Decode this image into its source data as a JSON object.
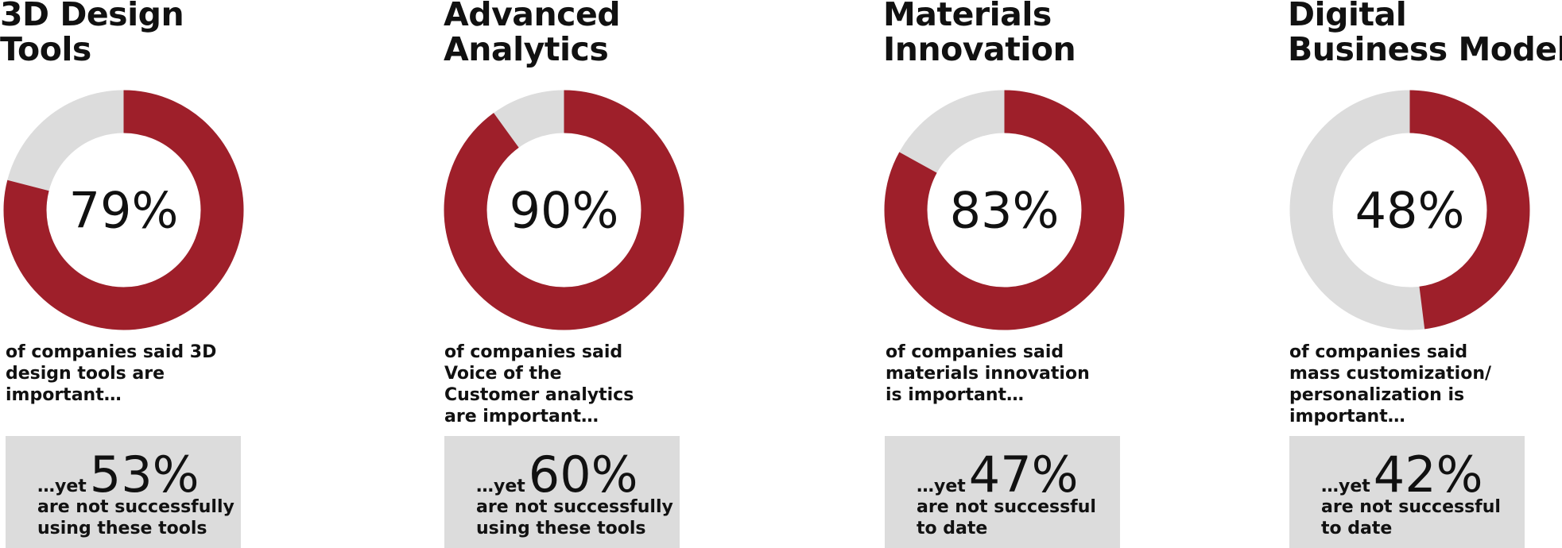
{
  "colors": {
    "accent": "#9e1f2a",
    "track": "#dcdcdc",
    "callout_bg": "#dcdcdc",
    "text": "#111111"
  },
  "chart_data": [
    {
      "type": "pie",
      "title": "3D Design Tools",
      "title_lines": [
        "3D Design",
        "Tools"
      ],
      "value": 79,
      "value_label": "79%",
      "description_lines": [
        "of companies said 3D",
        "design tools are",
        "important…"
      ],
      "callout": {
        "prefix": "…yet",
        "value": 53,
        "value_label": "53%",
        "text_lines": [
          "are not successfully",
          "using these tools"
        ]
      }
    },
    {
      "type": "pie",
      "title": "Advanced Analytics",
      "title_lines": [
        "Advanced",
        "Analytics"
      ],
      "value": 90,
      "value_label": "90%",
      "description_lines": [
        "of companies said",
        "Voice of the",
        "Customer analytics",
        "are important…"
      ],
      "callout": {
        "prefix": "…yet",
        "value": 60,
        "value_label": "60%",
        "text_lines": [
          "are not successfully",
          "using these tools"
        ]
      }
    },
    {
      "type": "pie",
      "title": "Materials Innovation",
      "title_lines": [
        "Materials",
        "Innovation"
      ],
      "value": 83,
      "value_label": "83%",
      "description_lines": [
        "of companies said",
        "materials innovation",
        "is important…"
      ],
      "callout": {
        "prefix": "…yet",
        "value": 47,
        "value_label": "47%",
        "text_lines": [
          "are not successful",
          "to date"
        ]
      }
    },
    {
      "type": "pie",
      "title": "Digital Business Models",
      "title_lines": [
        "Digital",
        "Business Models"
      ],
      "value": 48,
      "value_label": "48%",
      "description_lines": [
        "of companies said",
        "mass customization/",
        "personalization is",
        "important…"
      ],
      "callout": {
        "prefix": "…yet",
        "value": 42,
        "value_label": "42%",
        "text_lines": [
          "are not successful",
          "to date"
        ]
      }
    }
  ]
}
